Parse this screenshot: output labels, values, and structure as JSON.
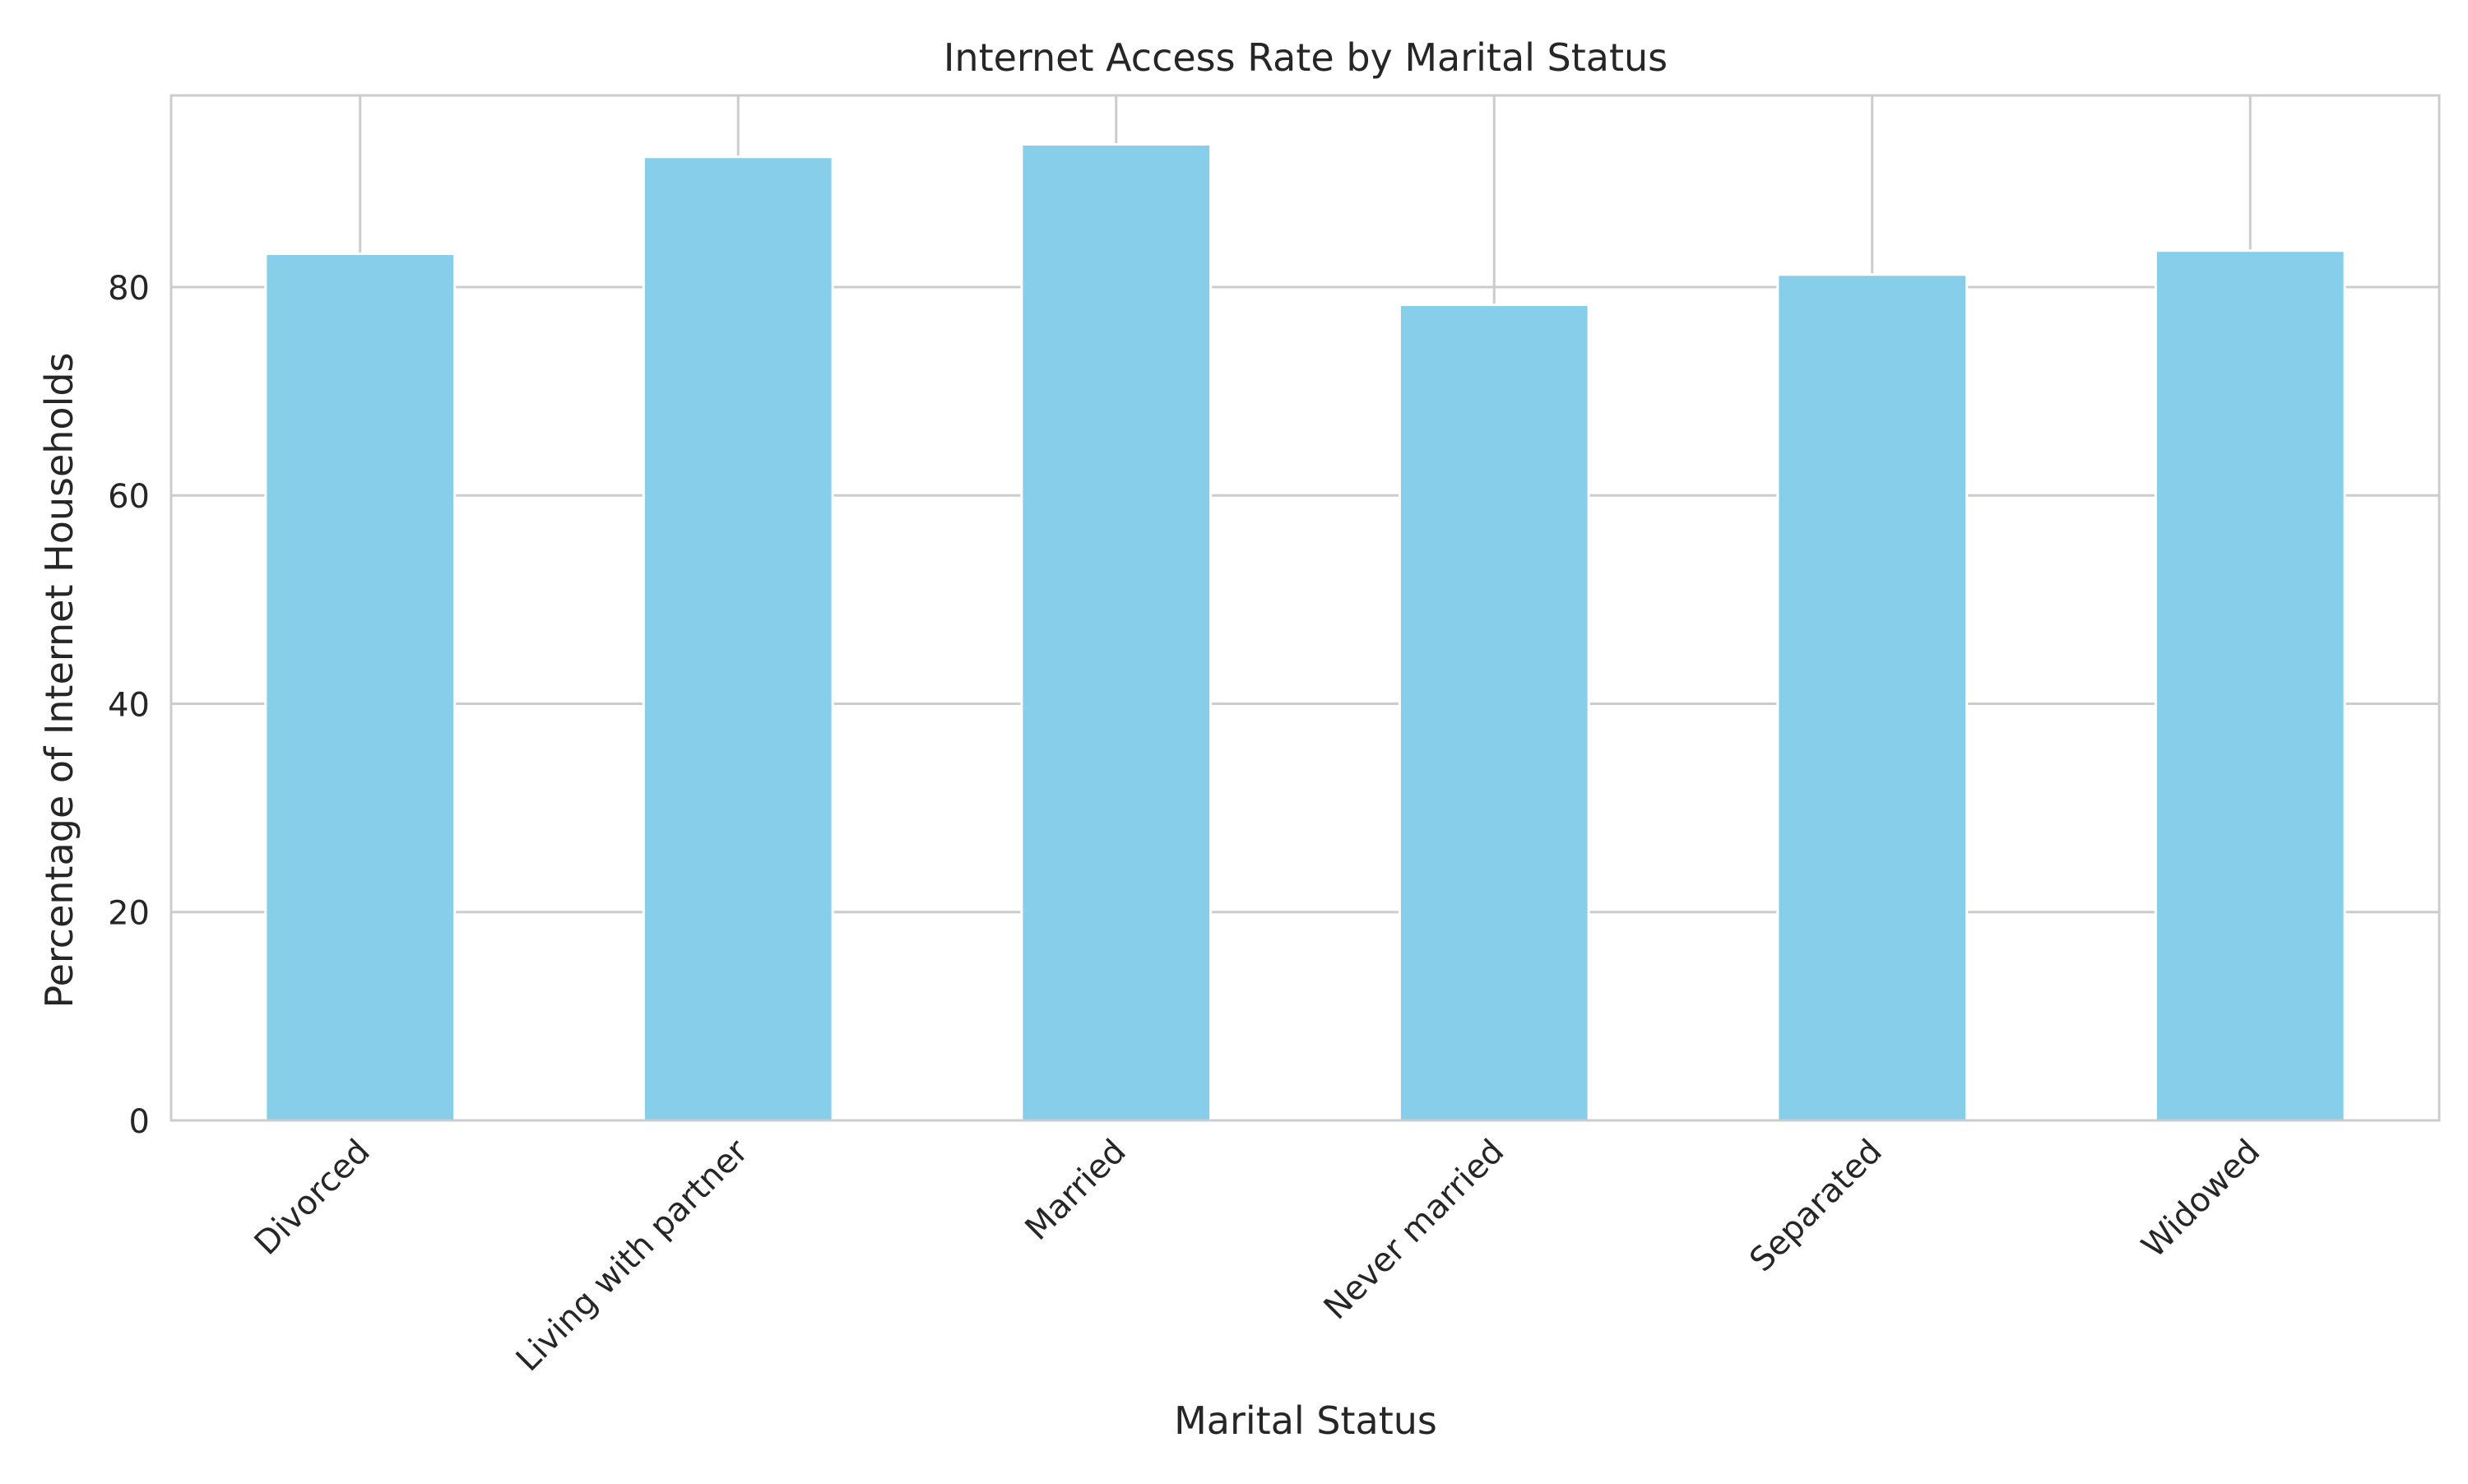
{
  "chart_data": {
    "type": "bar",
    "title": "Internet Access Rate by Marital Status",
    "xlabel": "Marital Status",
    "ylabel": "Percentage of Internet Households",
    "categories": [
      "Divorced",
      "Living with partner",
      "Married",
      "Never married",
      "Separated",
      "Widowed"
    ],
    "values": [
      83.2,
      92.5,
      93.7,
      78.3,
      81.2,
      83.5
    ],
    "ylim": [
      0,
      98.4
    ],
    "yticks": [
      0,
      20,
      40,
      60,
      80
    ],
    "grid": true,
    "legend": "none",
    "colors": {
      "bar": "#87ceeb",
      "grid": "#cccccc",
      "axis": "#cccccc",
      "text": "#262626"
    }
  }
}
